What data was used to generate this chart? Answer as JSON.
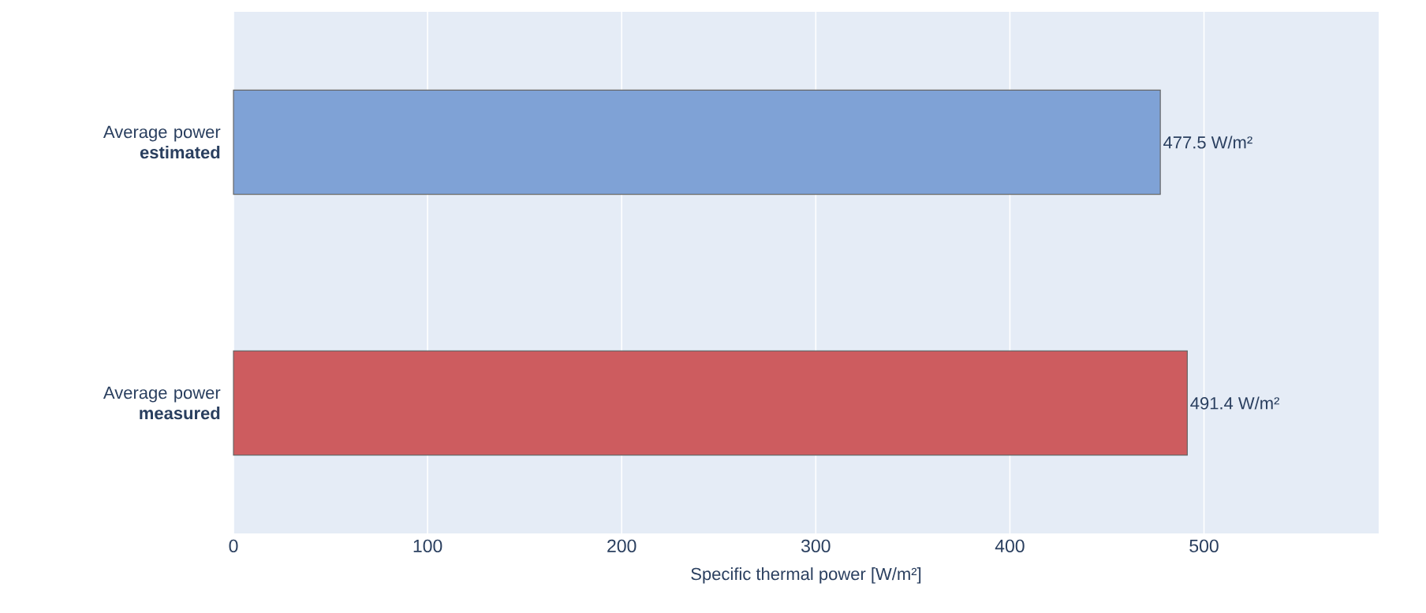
{
  "chart_data": {
    "type": "bar",
    "orientation": "horizontal",
    "categories": [
      "Average power **estimated**",
      "Average power **measured**"
    ],
    "values": [
      477.5,
      491.4
    ],
    "colors": [
      "#7fa2d6",
      "#cd5c5f"
    ],
    "value_labels": [
      "477.5 W/m²",
      "491.4 W/m²"
    ],
    "xlabel": "Specific thermal power [W/m²]",
    "xlim": [
      0,
      590
    ],
    "xticks": [
      0,
      100,
      200,
      300,
      400,
      500
    ],
    "grid": "x"
  }
}
